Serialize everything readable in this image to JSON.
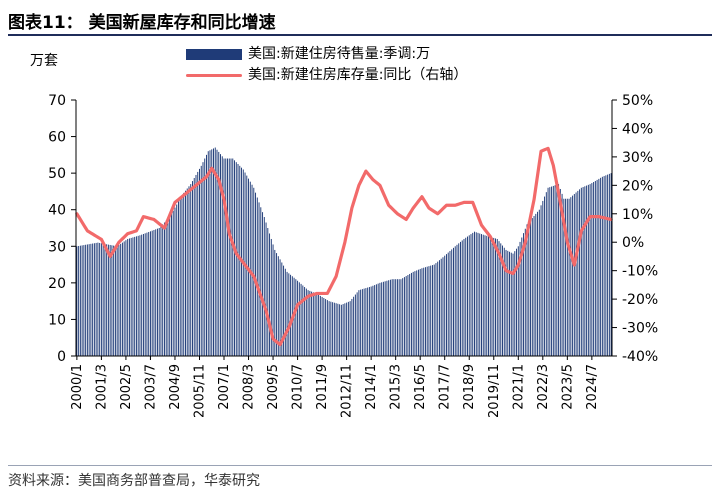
{
  "title": "图表11： 美国新屋库存和同比增速",
  "unit_left": "万套",
  "source": "资料来源：美国商务部普查局，华泰研究",
  "colors": {
    "bar": "#1f3b78",
    "line": "#f26a6a",
    "axis": "#000000"
  },
  "chart_data": {
    "type": "bar+line",
    "title": "",
    "legend": {
      "placement": "top-center",
      "entries": [
        "美国:新建住房待售量:季调:万",
        "美国:新建住房库存量:同比（右轴）"
      ]
    },
    "x_tick_labels": [
      "2000/1",
      "2001/3",
      "2002/5",
      "2003/7",
      "2004/9",
      "2005/11",
      "2007/1",
      "2008/3",
      "2009/5",
      "2010/7",
      "2011/9",
      "2012/11",
      "2014/1",
      "2015/3",
      "2016/5",
      "2017/7",
      "2018/9",
      "2019/11",
      "2021/1",
      "2022/3",
      "2023/5",
      "2024/7"
    ],
    "x_range": [
      "2000/1",
      "2025/6"
    ],
    "y_left": {
      "min": 0,
      "max": 70,
      "ticks": [
        0,
        10,
        20,
        30,
        40,
        50,
        60,
        70
      ]
    },
    "y_right": {
      "min": -40,
      "max": 50,
      "ticks": [
        "-40%",
        "-30%",
        "-20%",
        "-10%",
        "0%",
        "10%",
        "20%",
        "30%",
        "40%",
        "50%"
      ]
    },
    "series": [
      {
        "name": "美国:新建住房待售量:季调:万",
        "type": "bar",
        "axis": "left",
        "keypoints": [
          [
            "2000/1",
            30
          ],
          [
            "2001/1",
            31
          ],
          [
            "2001/12",
            30
          ],
          [
            "2002/6",
            32
          ],
          [
            "2003/1",
            33
          ],
          [
            "2003/12",
            35
          ],
          [
            "2004/6",
            38
          ],
          [
            "2005/1",
            44
          ],
          [
            "2005/6",
            47
          ],
          [
            "2005/12",
            52
          ],
          [
            "2006/4",
            56
          ],
          [
            "2006/8",
            57
          ],
          [
            "2007/1",
            54
          ],
          [
            "2007/6",
            54
          ],
          [
            "2007/12",
            51
          ],
          [
            "2008/6",
            46
          ],
          [
            "2008/12",
            38
          ],
          [
            "2009/6",
            29
          ],
          [
            "2010/1",
            23
          ],
          [
            "2010/6",
            21
          ],
          [
            "2011/1",
            18
          ],
          [
            "2011/6",
            17
          ],
          [
            "2012/1",
            15
          ],
          [
            "2012/8",
            14
          ],
          [
            "2013/1",
            15
          ],
          [
            "2013/6",
            18
          ],
          [
            "2014/1",
            19
          ],
          [
            "2014/6",
            20
          ],
          [
            "2015/1",
            21
          ],
          [
            "2015/6",
            21
          ],
          [
            "2016/1",
            23
          ],
          [
            "2016/6",
            24
          ],
          [
            "2017/1",
            25
          ],
          [
            "2017/6",
            27
          ],
          [
            "2018/1",
            30
          ],
          [
            "2018/6",
            32
          ],
          [
            "2018/12",
            34
          ],
          [
            "2019/6",
            33
          ],
          [
            "2020/1",
            32
          ],
          [
            "2020/6",
            29
          ],
          [
            "2020/10",
            28
          ],
          [
            "2021/1",
            30
          ],
          [
            "2021/6",
            36
          ],
          [
            "2022/1",
            40
          ],
          [
            "2022/6",
            46
          ],
          [
            "2022/12",
            47
          ],
          [
            "2023/3",
            43
          ],
          [
            "2023/6",
            43
          ],
          [
            "2024/1",
            46
          ],
          [
            "2024/6",
            47
          ],
          [
            "2025/1",
            49
          ],
          [
            "2025/6",
            50
          ]
        ]
      },
      {
        "name": "美国:新建住房库存量:同比（右轴）",
        "type": "line",
        "axis": "right",
        "keypoints": [
          [
            "2000/1",
            10
          ],
          [
            "2000/7",
            4
          ],
          [
            "2001/3",
            1
          ],
          [
            "2001/8",
            -5
          ],
          [
            "2002/1",
            0
          ],
          [
            "2002/6",
            3
          ],
          [
            "2002/11",
            4
          ],
          [
            "2003/3",
            9
          ],
          [
            "2003/9",
            8
          ],
          [
            "2004/3",
            5
          ],
          [
            "2004/9",
            14
          ],
          [
            "2005/3",
            17
          ],
          [
            "2005/9",
            20
          ],
          [
            "2006/3",
            23
          ],
          [
            "2006/6",
            26
          ],
          [
            "2006/10",
            22
          ],
          [
            "2007/1",
            15
          ],
          [
            "2007/4",
            3
          ],
          [
            "2007/8",
            -4
          ],
          [
            "2008/1",
            -8
          ],
          [
            "2008/6",
            -12
          ],
          [
            "2009/1",
            -24
          ],
          [
            "2009/5",
            -34
          ],
          [
            "2009/9",
            -36
          ],
          [
            "2010/2",
            -30
          ],
          [
            "2010/7",
            -22
          ],
          [
            "2011/1",
            -19
          ],
          [
            "2011/6",
            -18
          ],
          [
            "2011/12",
            -18
          ],
          [
            "2012/5",
            -12
          ],
          [
            "2012/10",
            0
          ],
          [
            "2013/2",
            12
          ],
          [
            "2013/6",
            20
          ],
          [
            "2013/10",
            25
          ],
          [
            "2014/2",
            22
          ],
          [
            "2014/6",
            20
          ],
          [
            "2014/11",
            13
          ],
          [
            "2015/4",
            10
          ],
          [
            "2015/9",
            8
          ],
          [
            "2016/1",
            12
          ],
          [
            "2016/6",
            16
          ],
          [
            "2016/10",
            12
          ],
          [
            "2017/3",
            10
          ],
          [
            "2017/8",
            13
          ],
          [
            "2018/1",
            13
          ],
          [
            "2018/6",
            14
          ],
          [
            "2018/11",
            14
          ],
          [
            "2019/4",
            6
          ],
          [
            "2019/9",
            2
          ],
          [
            "2020/2",
            -4
          ],
          [
            "2020/6",
            -10
          ],
          [
            "2020/10",
            -11
          ],
          [
            "2021/1",
            -8
          ],
          [
            "2021/5",
            0
          ],
          [
            "2021/10",
            15
          ],
          [
            "2022/2",
            32
          ],
          [
            "2022/6",
            33
          ],
          [
            "2022/9",
            27
          ],
          [
            "2023/1",
            14
          ],
          [
            "2023/5",
            0
          ],
          [
            "2023/9",
            -8
          ],
          [
            "2024/1",
            4
          ],
          [
            "2024/6",
            9
          ],
          [
            "2024/11",
            9
          ],
          [
            "2025/6",
            8
          ]
        ]
      }
    ]
  }
}
